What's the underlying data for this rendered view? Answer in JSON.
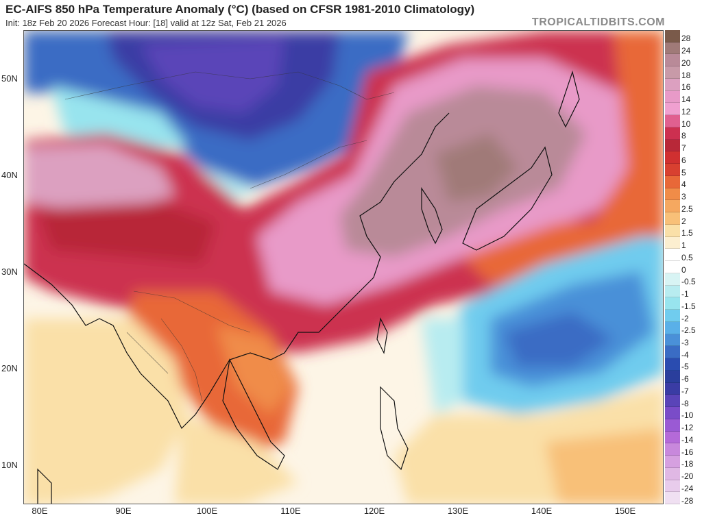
{
  "header": {
    "title": "EC-AIFS 850 hPa Temperature Anomaly (°C) (based on CFSR 1981-2010 Climatology)",
    "subtitle": "Init: 18z Feb 20 2026   Forecast Hour: [18]   valid at 12z Sat, Feb 21 2026",
    "watermark": "TROPICALTIDBITS.COM"
  },
  "map": {
    "lat_labels": [
      "50N",
      "40N",
      "30N",
      "20N",
      "10N"
    ],
    "lon_labels": [
      "80E",
      "90E",
      "100E",
      "110E",
      "120E",
      "130E",
      "140E",
      "150E"
    ]
  },
  "colorbar": {
    "labels": [
      "28",
      "24",
      "20",
      "18",
      "16",
      "14",
      "12",
      "10",
      "8",
      "7",
      "6",
      "5",
      "4",
      "3",
      "2.5",
      "2",
      "1.5",
      "1",
      "0.5",
      "0",
      "-0.5",
      "-1",
      "-1.5",
      "-2",
      "-2.5",
      "-3",
      "-4",
      "-5",
      "-6",
      "-7",
      "-8",
      "-10",
      "-12",
      "-14",
      "-16",
      "-18",
      "-20",
      "-24",
      "-28"
    ],
    "colors": [
      "#7a5a4a",
      "#a07a78",
      "#b98a98",
      "#c89aa8",
      "#dca0c0",
      "#e89ac8",
      "#f0a0d0",
      "#e06090",
      "#cc3050",
      "#b82838",
      "#d03030",
      "#d84030",
      "#e86838",
      "#f08c48",
      "#f5a860",
      "#f8c078",
      "#fae0a8",
      "#fcefd0",
      "#ffffff",
      "#ffffff",
      "#d8f4f4",
      "#b8ecf0",
      "#98e4ee",
      "#70ccee",
      "#5ab0e8",
      "#4a90d8",
      "#3a6cc4",
      "#2a4cb0",
      "#2a3e9c",
      "#3a3ca4",
      "#5a44b8",
      "#7a4cc8",
      "#9a5ad4",
      "#b46ad8",
      "#c888dc",
      "#d6a0e0",
      "#e0b8e4",
      "#e8ccec",
      "#f0e0f2"
    ],
    "accent_colors": {
      "warm_anomaly": "#dca0c0",
      "cold_anomaly": "#2a4cb0"
    }
  }
}
